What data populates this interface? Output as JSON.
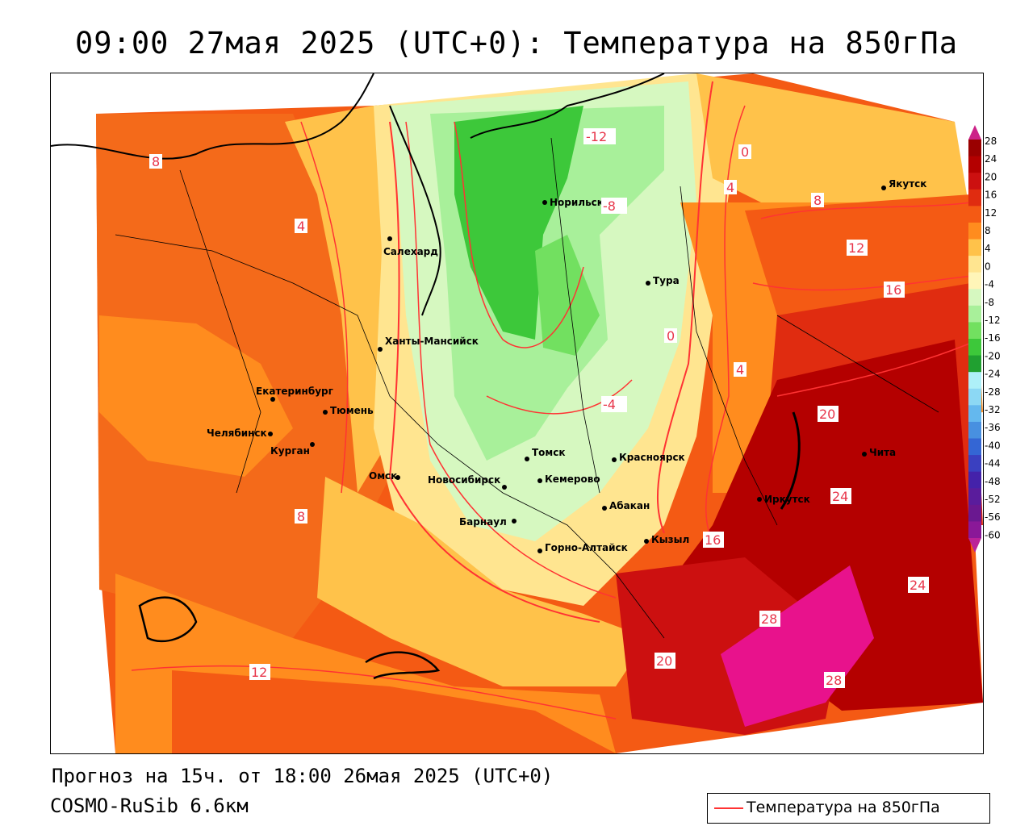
{
  "title": "09:00 27мая 2025 (UTC+0): Температура на 850гПа",
  "forecast_line": "Прогноз на 15ч. от 18:00 26мая 2025 (UTC+0)",
  "model_line": "COSMO-RuSib 6.6км",
  "legend": {
    "label": "Температура на 850гПа",
    "line_color": "#ff3333"
  },
  "colorbar": {
    "ticks": [
      "28",
      "24",
      "20",
      "16",
      "12",
      "8",
      "4",
      "0",
      "-4",
      "-8",
      "-12",
      "-16",
      "-20",
      "-24",
      "-28",
      "-32",
      "-36",
      "-40",
      "-44",
      "-48",
      "-52",
      "-56",
      "-60"
    ],
    "colors": [
      "#9a0000",
      "#b40000",
      "#cc1010",
      "#e02c10",
      "#f45a14",
      "#ff8c1e",
      "#ffc24a",
      "#ffe590",
      "#fff5b8",
      "#d6f8c0",
      "#a8f09a",
      "#72e060",
      "#3dc83a",
      "#20a030",
      "#aef0f8",
      "#8cd8f4",
      "#64b8ee",
      "#4890e0",
      "#3466d4",
      "#3a40c0",
      "#4422aa",
      "#5a1c9c",
      "#6a1890",
      "#8a1898"
    ],
    "top_arrow_color": "#cc2288",
    "bottom_arrow_color": "#bb2299"
  },
  "cities": [
    {
      "name": "Салехард"
    },
    {
      "name": "Норильск"
    },
    {
      "name": "Тура"
    },
    {
      "name": "Якутск"
    },
    {
      "name": "Ханты-Мансийск"
    },
    {
      "name": "Екатеринбург"
    },
    {
      "name": "Тюмень"
    },
    {
      "name": "Челябинск"
    },
    {
      "name": "Курган"
    },
    {
      "name": "Омск"
    },
    {
      "name": "Новосибирск"
    },
    {
      "name": "Томск"
    },
    {
      "name": "Кемерово"
    },
    {
      "name": "Красноярск"
    },
    {
      "name": "Барнаул"
    },
    {
      "name": "Абакан"
    },
    {
      "name": "Горно-Алтайск"
    },
    {
      "name": "Кызыл"
    },
    {
      "name": "Иркутск"
    },
    {
      "name": "Чита"
    }
  ],
  "isotherm_labels": [
    "8",
    "4",
    "-12",
    "-8",
    "0",
    "4",
    "8",
    "12",
    "16",
    "20",
    "24",
    "28",
    "-4",
    "0",
    "4",
    "8",
    "12",
    "16",
    "20",
    "24",
    "28"
  ]
}
